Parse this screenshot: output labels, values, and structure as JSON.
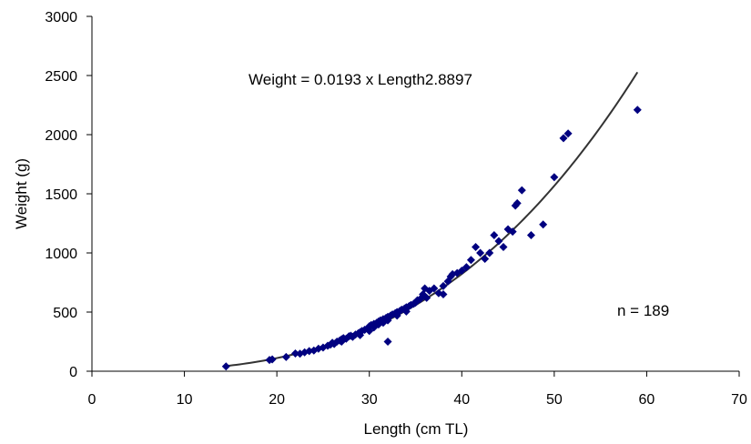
{
  "chart_data": {
    "type": "scatter",
    "title": "",
    "xlabel": "Length (cm TL)",
    "ylabel": "Weight (g)",
    "xlim": [
      0,
      70
    ],
    "ylim": [
      0,
      3000
    ],
    "xticks": [
      "0",
      "10",
      "20",
      "30",
      "40",
      "50",
      "60",
      "70"
    ],
    "yticks": [
      "0",
      "500",
      "1000",
      "1500",
      "2000",
      "2500",
      "3000"
    ],
    "grid": false,
    "legend": "none",
    "annotations": {
      "equation": "Weight = 0.0193 x Length2.8897",
      "n_label": "n = 189"
    },
    "series": [
      {
        "marker": "diamond",
        "color": "#000080",
        "points": [
          [
            14.5,
            40
          ],
          [
            19.2,
            95
          ],
          [
            19.5,
            100
          ],
          [
            21.0,
            120
          ],
          [
            22.0,
            150
          ],
          [
            22.5,
            148
          ],
          [
            23.0,
            160
          ],
          [
            23.5,
            170
          ],
          [
            24.0,
            175
          ],
          [
            24.5,
            190
          ],
          [
            25.0,
            200
          ],
          [
            25.5,
            215
          ],
          [
            25.8,
            225
          ],
          [
            26.0,
            240
          ],
          [
            26.2,
            230
          ],
          [
            26.5,
            250
          ],
          [
            26.8,
            260
          ],
          [
            27.0,
            270
          ],
          [
            27.0,
            250
          ],
          [
            27.2,
            280
          ],
          [
            27.5,
            275
          ],
          [
            27.8,
            295
          ],
          [
            28.0,
            300
          ],
          [
            28.2,
            290
          ],
          [
            28.5,
            310
          ],
          [
            28.8,
            320
          ],
          [
            29.0,
            330
          ],
          [
            29.0,
            305
          ],
          [
            29.2,
            340
          ],
          [
            29.5,
            350
          ],
          [
            29.8,
            360
          ],
          [
            30.0,
            380
          ],
          [
            30.0,
            340
          ],
          [
            30.2,
            390
          ],
          [
            30.5,
            400
          ],
          [
            30.5,
            370
          ],
          [
            30.8,
            410
          ],
          [
            31.0,
            420
          ],
          [
            31.0,
            395
          ],
          [
            31.2,
            430
          ],
          [
            31.5,
            440
          ],
          [
            31.5,
            410
          ],
          [
            31.8,
            450
          ],
          [
            32.0,
            460
          ],
          [
            32.0,
            430
          ],
          [
            32.0,
            250
          ],
          [
            32.3,
            470
          ],
          [
            32.5,
            480
          ],
          [
            32.8,
            490
          ],
          [
            33.0,
            500
          ],
          [
            33.0,
            470
          ],
          [
            33.3,
            510
          ],
          [
            33.5,
            520
          ],
          [
            33.8,
            530
          ],
          [
            34.0,
            540
          ],
          [
            34.0,
            505
          ],
          [
            34.3,
            550
          ],
          [
            34.5,
            560
          ],
          [
            34.8,
            570
          ],
          [
            35.0,
            580
          ],
          [
            35.2,
            600
          ],
          [
            35.5,
            610
          ],
          [
            35.8,
            650
          ],
          [
            36.0,
            700
          ],
          [
            36.2,
            620
          ],
          [
            36.5,
            680
          ],
          [
            37.0,
            700
          ],
          [
            37.5,
            660
          ],
          [
            38.0,
            720
          ],
          [
            38.0,
            650
          ],
          [
            38.5,
            760
          ],
          [
            38.8,
            800
          ],
          [
            39.0,
            820
          ],
          [
            39.5,
            830
          ],
          [
            40.0,
            850
          ],
          [
            40.5,
            880
          ],
          [
            41.0,
            940
          ],
          [
            41.5,
            1050
          ],
          [
            42.0,
            1000
          ],
          [
            42.5,
            950
          ],
          [
            43.0,
            1000
          ],
          [
            43.5,
            1150
          ],
          [
            44.0,
            1100
          ],
          [
            44.5,
            1050
          ],
          [
            45.0,
            1200
          ],
          [
            45.5,
            1180
          ],
          [
            45.8,
            1400
          ],
          [
            46.0,
            1420
          ],
          [
            46.5,
            1530
          ],
          [
            47.5,
            1150
          ],
          [
            48.8,
            1240
          ],
          [
            50.0,
            1640
          ],
          [
            51.0,
            1970
          ],
          [
            51.5,
            2010
          ],
          [
            59.0,
            2210
          ]
        ]
      }
    ],
    "fit": {
      "label": "Weight = 0.0193 x Length2.8897",
      "a": 0.0193,
      "b": 2.8897,
      "x_range": [
        14.5,
        59.0
      ],
      "color": "#333333"
    }
  }
}
